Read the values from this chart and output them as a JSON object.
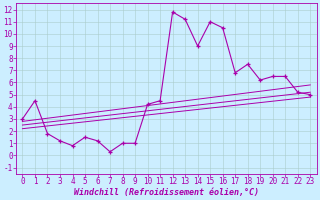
{
  "xlabel": "Windchill (Refroidissement éolien,°C)",
  "bg_color": "#cceeff",
  "line_color": "#aa00aa",
  "grid_color": "#aacccc",
  "xlim": [
    -0.5,
    23.5
  ],
  "ylim": [
    -1.5,
    12.5
  ],
  "xticks": [
    0,
    1,
    2,
    3,
    4,
    5,
    6,
    7,
    8,
    9,
    10,
    11,
    12,
    13,
    14,
    15,
    16,
    17,
    18,
    19,
    20,
    21,
    22,
    23
  ],
  "yticks": [
    -1,
    0,
    1,
    2,
    3,
    4,
    5,
    6,
    7,
    8,
    9,
    10,
    11,
    12
  ],
  "curve_x": [
    0,
    1,
    2,
    3,
    4,
    5,
    6,
    7,
    8,
    9,
    10,
    11,
    12,
    13,
    14,
    15,
    16,
    17,
    18,
    19,
    20,
    21,
    22,
    23
  ],
  "curve_y": [
    3.0,
    4.5,
    1.8,
    1.2,
    0.8,
    1.5,
    1.2,
    0.3,
    1.0,
    1.0,
    4.2,
    4.5,
    11.8,
    11.2,
    9.0,
    11.0,
    10.5,
    6.8,
    7.5,
    6.2,
    6.5,
    6.5,
    5.2,
    5.0
  ],
  "line1_x": [
    0,
    23
  ],
  "line1_y": [
    2.8,
    5.8
  ],
  "line2_x": [
    0,
    23
  ],
  "line2_y": [
    2.5,
    5.2
  ],
  "line3_x": [
    0,
    23
  ],
  "line3_y": [
    2.2,
    4.8
  ],
  "xlabel_fontsize": 6.0,
  "tick_fontsize": 5.5
}
